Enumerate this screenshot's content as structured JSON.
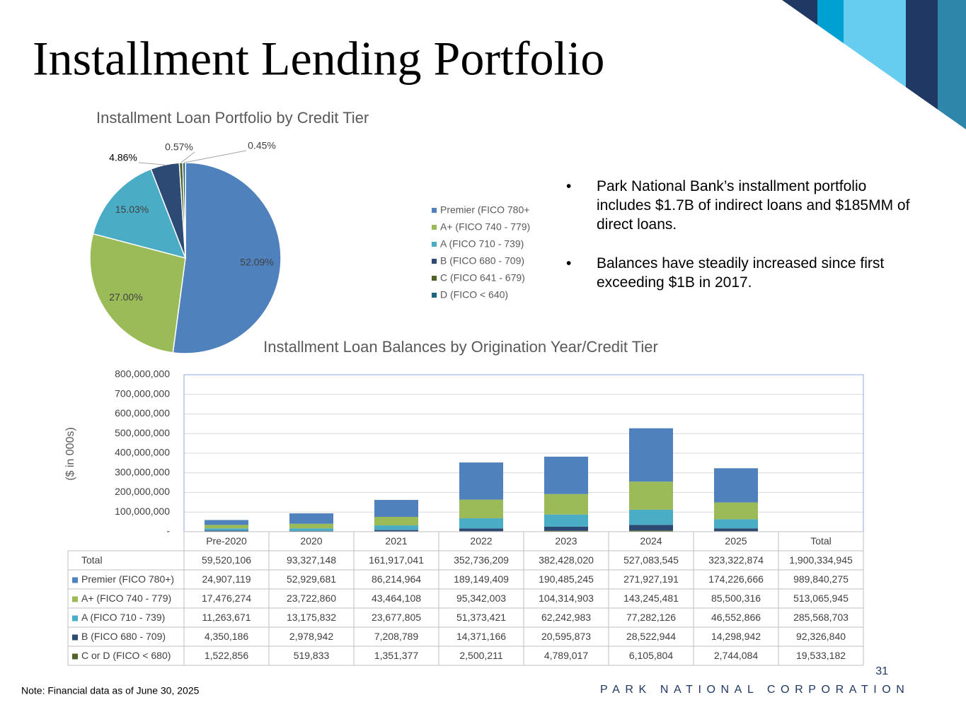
{
  "slide": {
    "title": "Installment Lending Portfolio",
    "bullets": [
      "Park National Bank’s installment portfolio includes $1.7B of indirect loans and $185MM of direct loans.",
      "Balances have steadily increased since first exceeding $1B in 2017."
    ],
    "note": "Note: Financial data as of June 30, 2025",
    "page_number": "31",
    "footer": "PARK NATIONAL CORPORATION"
  },
  "chart_data": [
    {
      "type": "pie",
      "title": "Installment Loan Portfolio by Credit Tier",
      "categories": [
        "Premier (FICO 780+",
        "A+ (FICO 740 - 779)",
        "A (FICO 710 - 739)",
        "B (FICO 680 - 709)",
        "C (FICO 641 - 679)",
        "D (FICO < 640)"
      ],
      "values": [
        52.09,
        27.0,
        15.03,
        4.86,
        0.57,
        0.45
      ],
      "value_labels": [
        "52.09%",
        "27.00%",
        "15.03%",
        "4.86%",
        "0.57%",
        "0.45%"
      ],
      "colors": [
        "#4f81bd",
        "#9bbb59",
        "#4bacc6",
        "#2c4a74",
        "#4f6228",
        "#1f6384"
      ],
      "legend": "right"
    },
    {
      "type": "bar",
      "stacked": true,
      "title": "Installment Loan Balances by Origination Year/Credit Tier",
      "y_label": "($ in 000s)",
      "categories": [
        "Pre-2020",
        "2020",
        "2021",
        "2022",
        "2023",
        "2024",
        "2025"
      ],
      "total_label": "Total",
      "series": [
        {
          "name": "Premier (FICO 780+)",
          "color": "#4f81bd",
          "values": [
            24907119,
            52929681,
            86214964,
            189149409,
            190485245,
            271927191,
            174226666
          ],
          "value_labels": [
            "24,907,119",
            "52,929,681",
            "86,214,964",
            "189,149,409",
            "190,485,245",
            "271,927,191",
            "174,226,666"
          ],
          "total": 989840275,
          "total_label": "989,840,275"
        },
        {
          "name": "A+ (FICO 740 - 779)",
          "color": "#9bbb59",
          "values": [
            17476274,
            23722860,
            43464108,
            95342003,
            104314903,
            143245481,
            85500316
          ],
          "value_labels": [
            "17,476,274",
            "23,722,860",
            "43,464,108",
            "95,342,003",
            "104,314,903",
            "143,245,481",
            "85,500,316"
          ],
          "total": 513065945,
          "total_label": "513,065,945"
        },
        {
          "name": "A (FICO 710 - 739)",
          "color": "#4bacc6",
          "values": [
            11263671,
            13175832,
            23677805,
            51373421,
            62242983,
            77282126,
            46552866
          ],
          "value_labels": [
            "11,263,671",
            "13,175,832",
            "23,677,805",
            "51,373,421",
            "62,242,983",
            "77,282,126",
            "46,552,866"
          ],
          "total": 285568703,
          "total_label": "285,568,703"
        },
        {
          "name": "B (FICO 680 - 709)",
          "color": "#2c4a74",
          "values": [
            4350186,
            2978942,
            7208789,
            14371166,
            20595873,
            28522944,
            14298942
          ],
          "value_labels": [
            "4,350,186",
            "2,978,942",
            "7,208,789",
            "14,371,166",
            "20,595,873",
            "28,522,944",
            "14,298,942"
          ],
          "total": 92326840,
          "total_label": "92,326,840"
        },
        {
          "name": "C or D (FICO < 680)",
          "color": "#4f6228",
          "values": [
            1522856,
            519833,
            1351377,
            2500211,
            4789017,
            6105804,
            2744084
          ],
          "value_labels": [
            "1,522,856",
            "519,833",
            "1,351,377",
            "2,500,211",
            "4,789,017",
            "6,105,804",
            "2,744,084"
          ],
          "total": 19533182,
          "total_label": "19,533,182"
        }
      ],
      "totals": {
        "name": "Total",
        "values": [
          59520106,
          93327148,
          161917041,
          352736209,
          382428020,
          527083545,
          323322874
        ],
        "value_labels": [
          "59,520,106",
          "93,327,148",
          "161,917,041",
          "352,736,209",
          "382,428,020",
          "527,083,545",
          "323,322,874"
        ],
        "grand_total": 1900334945,
        "grand_total_label": "1,900,334,945"
      },
      "ylim": [
        0,
        800000000
      ],
      "yticks": [
        {
          "value": 0,
          "label": "-"
        },
        {
          "value": 100000000,
          "label": "100,000,000"
        },
        {
          "value": 200000000,
          "label": "200,000,000"
        },
        {
          "value": 300000000,
          "label": "300,000,000"
        },
        {
          "value": 400000000,
          "label": "400,000,000"
        },
        {
          "value": 500000000,
          "label": "500,000,000"
        },
        {
          "value": 600000000,
          "label": "600,000,000"
        },
        {
          "value": 700000000,
          "label": "700,000,000"
        },
        {
          "value": 800000000,
          "label": "800,000,000"
        }
      ],
      "grid": true
    }
  ]
}
